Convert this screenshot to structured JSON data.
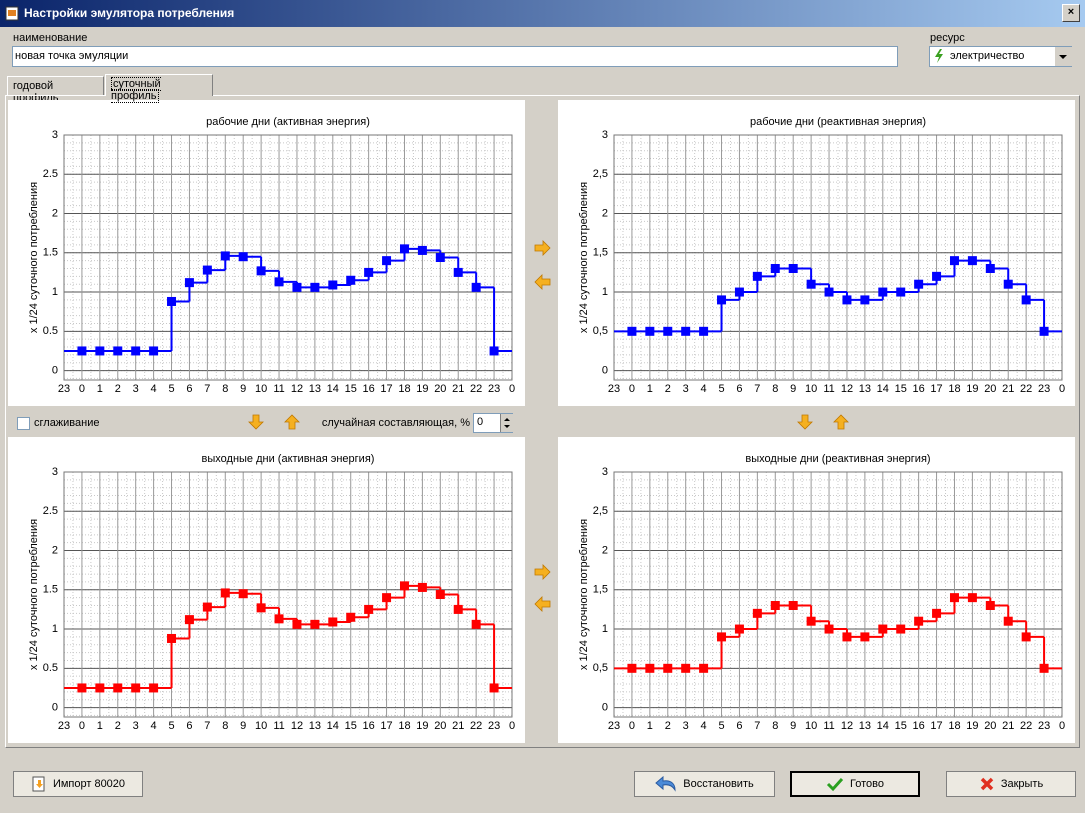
{
  "window": {
    "title": "Настройки эмулятора потребления",
    "name_label": "наименование",
    "name_value": "новая точка эмуляции",
    "resource_label": "ресурс",
    "resource_value": "электричество",
    "tabs": [
      "годовой профиль",
      "суточный профиль"
    ],
    "smoothing_label": "сглаживание",
    "random_label": "случайная составляющая, %",
    "random_value": 0,
    "buttons": [
      "Импорт 80020",
      "Восстановить",
      "Готово",
      "Закрыть"
    ]
  },
  "chart_data": [
    {
      "type": "step",
      "title": "рабочие дни (активная энергия)",
      "y_label": "x 1/24 суточного потребления",
      "color": "#0000ff",
      "x": [
        0,
        1,
        2,
        3,
        4,
        5,
        6,
        7,
        8,
        9,
        10,
        11,
        12,
        13,
        14,
        15,
        16,
        17,
        18,
        19,
        20,
        21,
        22,
        23
      ],
      "values": [
        0.25,
        0.25,
        0.25,
        0.25,
        0.25,
        0.88,
        1.12,
        1.28,
        1.46,
        1.45,
        1.27,
        1.13,
        1.06,
        1.06,
        1.09,
        1.15,
        1.25,
        1.4,
        1.55,
        1.53,
        1.44,
        1.25,
        1.06,
        0.25
      ],
      "xlim": [
        -1,
        24
      ],
      "ylim": [
        -0.12,
        3
      ],
      "xticks": [
        {
          "value": -1,
          "label": "23"
        },
        0,
        1,
        2,
        3,
        4,
        5,
        6,
        7,
        8,
        9,
        10,
        11,
        12,
        13,
        14,
        15,
        16,
        17,
        18,
        19,
        20,
        21,
        22,
        23,
        {
          "value": 24,
          "label": "0"
        }
      ],
      "yticks": [
        0,
        0.5,
        1,
        1.5,
        2,
        2.5,
        3
      ],
      "grid": true
    },
    {
      "type": "step",
      "title": "рабочие дни (реактивная энергия)",
      "y_label": "x 1/24 суточного потребления",
      "color": "#0000ff",
      "x": [
        0,
        1,
        2,
        3,
        4,
        5,
        6,
        7,
        8,
        9,
        10,
        11,
        12,
        13,
        14,
        15,
        16,
        17,
        18,
        19,
        20,
        21,
        22,
        23
      ],
      "values": [
        0.5,
        0.5,
        0.5,
        0.5,
        0.5,
        0.9,
        1.0,
        1.2,
        1.3,
        1.3,
        1.1,
        1.0,
        0.9,
        0.9,
        1.0,
        1.0,
        1.1,
        1.2,
        1.4,
        1.4,
        1.3,
        1.1,
        0.9,
        0.5
      ],
      "xlim": [
        -1,
        24
      ],
      "ylim": [
        -0.12,
        3
      ],
      "xticks": [
        {
          "value": -1,
          "label": "23"
        },
        0,
        1,
        2,
        3,
        4,
        5,
        6,
        7,
        8,
        9,
        10,
        11,
        12,
        13,
        14,
        15,
        16,
        17,
        18,
        19,
        20,
        21,
        22,
        23,
        {
          "value": 24,
          "label": "0"
        }
      ],
      "yticks": [
        0,
        {
          "value": 0.5,
          "label": "0,5"
        },
        1,
        {
          "value": 1.5,
          "label": "1,5"
        },
        2,
        {
          "value": 2.5,
          "label": "2,5"
        },
        3
      ],
      "grid": true
    },
    {
      "type": "step",
      "title": "выходные дни (активная энергия)",
      "y_label": "x 1/24 суточного потребления",
      "color": "#ff0000",
      "x": [
        0,
        1,
        2,
        3,
        4,
        5,
        6,
        7,
        8,
        9,
        10,
        11,
        12,
        13,
        14,
        15,
        16,
        17,
        18,
        19,
        20,
        21,
        22,
        23
      ],
      "values": [
        0.25,
        0.25,
        0.25,
        0.25,
        0.25,
        0.88,
        1.12,
        1.28,
        1.46,
        1.45,
        1.27,
        1.13,
        1.06,
        1.06,
        1.09,
        1.15,
        1.25,
        1.4,
        1.55,
        1.53,
        1.44,
        1.25,
        1.06,
        0.25
      ],
      "xlim": [
        -1,
        24
      ],
      "ylim": [
        -0.12,
        3
      ],
      "xticks": [
        {
          "value": -1,
          "label": "23"
        },
        0,
        1,
        2,
        3,
        4,
        5,
        6,
        7,
        8,
        9,
        10,
        11,
        12,
        13,
        14,
        15,
        16,
        17,
        18,
        19,
        20,
        21,
        22,
        23,
        {
          "value": 24,
          "label": "0"
        }
      ],
      "yticks": [
        0,
        0.5,
        1,
        1.5,
        2,
        2.5,
        3
      ],
      "grid": true
    },
    {
      "type": "step",
      "title": "выходные дни (реактивная энергия)",
      "y_label": "x 1/24 суточного потребления",
      "color": "#ff0000",
      "x": [
        0,
        1,
        2,
        3,
        4,
        5,
        6,
        7,
        8,
        9,
        10,
        11,
        12,
        13,
        14,
        15,
        16,
        17,
        18,
        19,
        20,
        21,
        22,
        23
      ],
      "values": [
        0.5,
        0.5,
        0.5,
        0.5,
        0.5,
        0.9,
        1.0,
        1.2,
        1.3,
        1.3,
        1.1,
        1.0,
        0.9,
        0.9,
        1.0,
        1.0,
        1.1,
        1.2,
        1.4,
        1.4,
        1.3,
        1.1,
        0.9,
        0.5
      ],
      "xlim": [
        -1,
        24
      ],
      "ylim": [
        -0.12,
        3
      ],
      "xticks": [
        {
          "value": -1,
          "label": "23"
        },
        0,
        1,
        2,
        3,
        4,
        5,
        6,
        7,
        8,
        9,
        10,
        11,
        12,
        13,
        14,
        15,
        16,
        17,
        18,
        19,
        20,
        21,
        22,
        23,
        {
          "value": 24,
          "label": "0"
        }
      ],
      "yticks": [
        0,
        {
          "value": 0.5,
          "label": "0,5"
        },
        1,
        {
          "value": 1.5,
          "label": "1,5"
        },
        2,
        {
          "value": 2.5,
          "label": "2,5"
        },
        3
      ],
      "grid": true
    }
  ]
}
